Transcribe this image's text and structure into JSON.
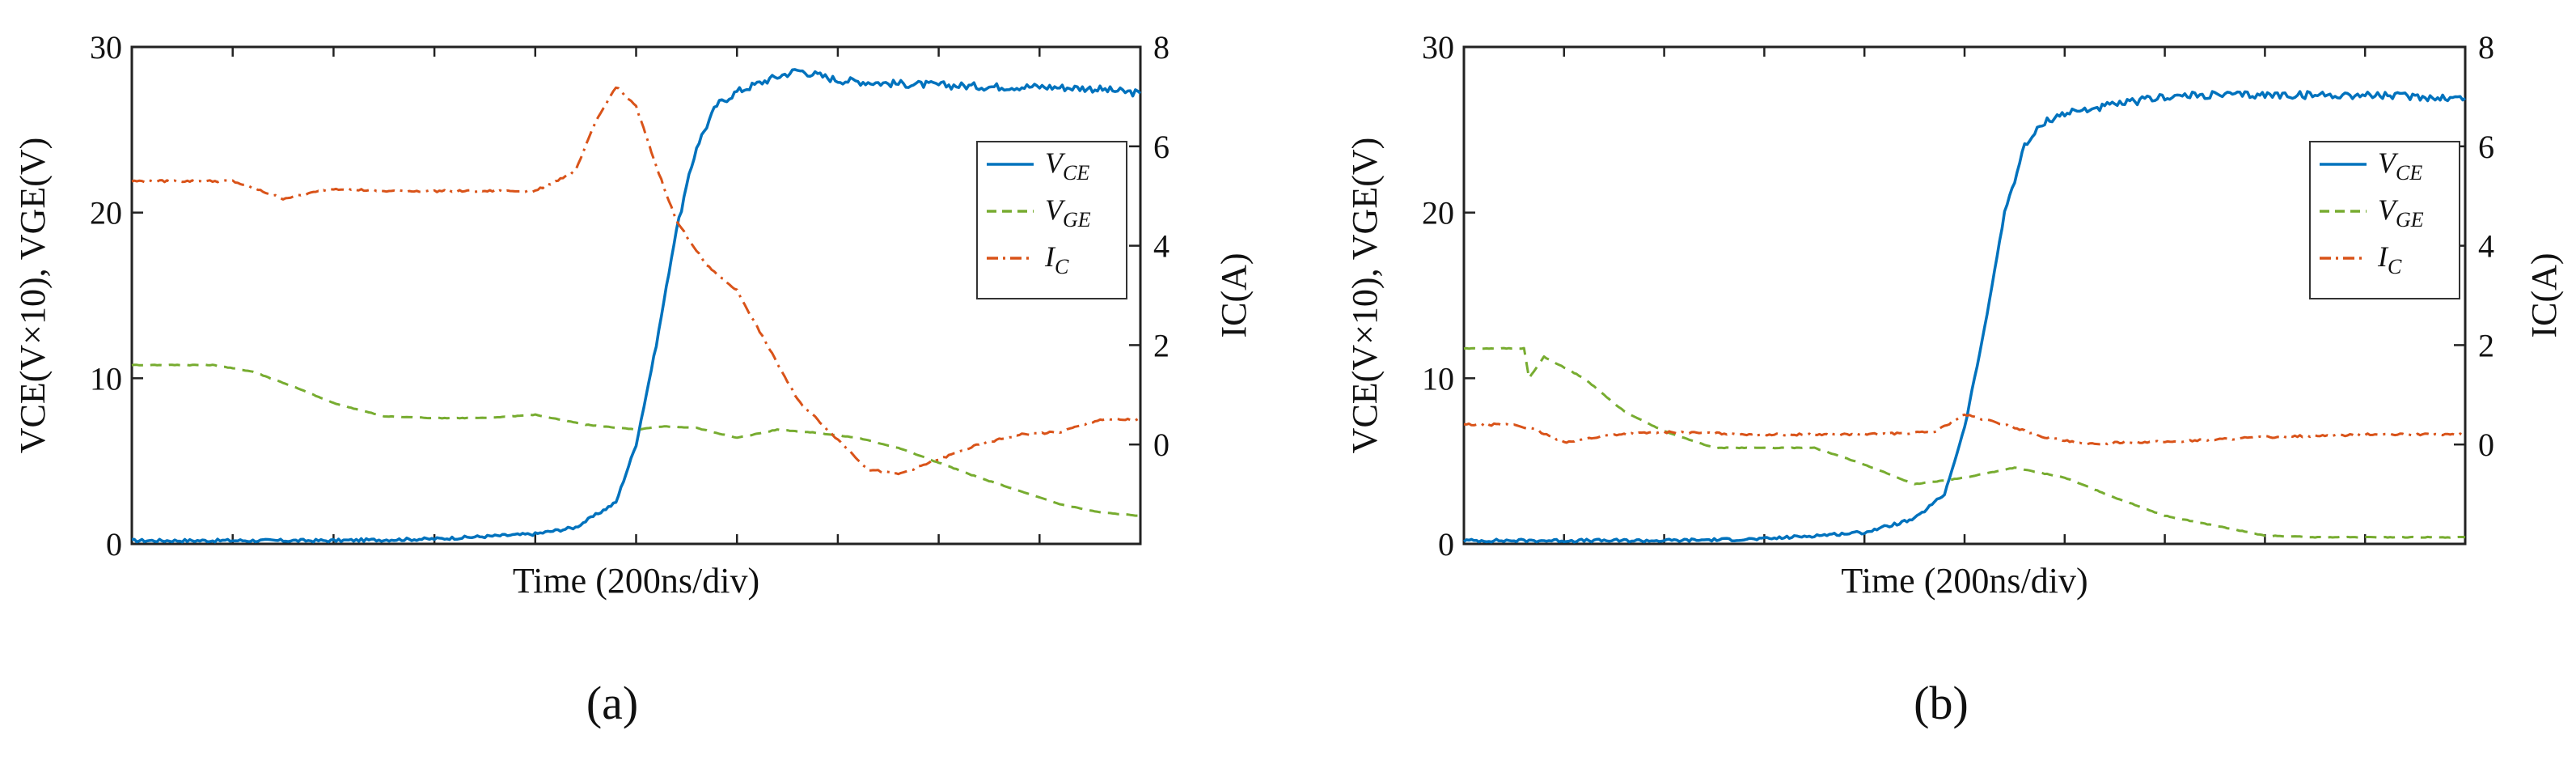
{
  "chart_data": [
    {
      "type": "line",
      "panel_label": "(a)",
      "xlabel": "Time (200ns/div)",
      "ylabel_left": "VCE(V×10), VGE(V)",
      "ylabel_right": "IC(A)",
      "x_divisions": 10,
      "ylim_left": [
        0,
        30
      ],
      "ylim_right": [
        -2,
        8
      ],
      "yticks_left": [
        "0",
        "10",
        "20",
        "30"
      ],
      "yticks_right": [
        "0",
        "2",
        "4",
        "6",
        "8"
      ],
      "legend": [
        {
          "series": "VCE",
          "main": "V",
          "sub": "CE",
          "color": "#0072BD",
          "dash": "solid"
        },
        {
          "series": "VGE",
          "main": "V",
          "sub": "GE",
          "color": "#77AC30",
          "dash": "dashed"
        },
        {
          "series": "IC",
          "main": "I",
          "sub": "C",
          "color": "#D95319",
          "dash": "dashdot"
        }
      ],
      "series": [
        {
          "name": "VCE",
          "axis": "left",
          "color": "#0072BD",
          "dash": "solid",
          "x": [
            0,
            1,
            2,
            3,
            4,
            4.4,
            4.8,
            5.0,
            5.2,
            5.4,
            5.6,
            5.8,
            6.0,
            6.3,
            6.6,
            7.0,
            7.5,
            8.0,
            8.5,
            9.0,
            9.5,
            10
          ],
          "y": [
            0.2,
            0.2,
            0.2,
            0.3,
            0.6,
            1.0,
            2.5,
            6.0,
            12.0,
            19.0,
            24.0,
            26.5,
            27.3,
            28.0,
            28.6,
            28.0,
            27.8,
            27.7,
            27.6,
            27.6,
            27.5,
            27.2
          ]
        },
        {
          "name": "VGE",
          "axis": "left",
          "color": "#77AC30",
          "dash": "dashed",
          "x": [
            0,
            0.8,
            1.2,
            1.6,
            2.0,
            2.5,
            3.0,
            3.5,
            4.0,
            4.5,
            5.0,
            5.3,
            5.6,
            6.0,
            6.4,
            6.8,
            7.2,
            7.6,
            8.0,
            8.4,
            8.8,
            9.2,
            9.6,
            10
          ],
          "y": [
            10.8,
            10.8,
            10.4,
            9.5,
            8.5,
            7.7,
            7.6,
            7.6,
            7.8,
            7.2,
            6.9,
            7.1,
            7.0,
            6.4,
            6.9,
            6.7,
            6.4,
            5.8,
            4.9,
            4.0,
            3.2,
            2.4,
            1.9,
            1.7
          ]
        },
        {
          "name": "IC",
          "axis": "right",
          "color": "#D95319",
          "dash": "dashdot",
          "x": [
            0,
            1.0,
            1.5,
            2.0,
            2.5,
            3.0,
            3.5,
            4.0,
            4.4,
            4.6,
            4.8,
            5.0,
            5.2,
            5.4,
            5.7,
            6.0,
            6.3,
            6.6,
            7.0,
            7.3,
            7.6,
            8.0,
            8.4,
            8.8,
            9.2,
            9.6,
            10
          ],
          "y": [
            5.3,
            5.3,
            4.95,
            5.15,
            5.1,
            5.1,
            5.1,
            5.1,
            5.5,
            6.5,
            7.2,
            6.8,
            5.6,
            4.5,
            3.6,
            3.1,
            2.0,
            0.9,
            0.1,
            -0.5,
            -0.6,
            -0.3,
            0.0,
            0.2,
            0.25,
            0.5,
            0.5
          ]
        }
      ]
    },
    {
      "type": "line",
      "panel_label": "(b)",
      "xlabel": "Time (200ns/div)",
      "ylabel_left": "VCE(V×10), VGE(V)",
      "ylabel_right": "IC(A)",
      "x_divisions": 10,
      "ylim_left": [
        0,
        30
      ],
      "ylim_right": [
        -2,
        8
      ],
      "yticks_left": [
        "0",
        "10",
        "20",
        "30"
      ],
      "yticks_right": [
        "0",
        "2",
        "4",
        "6",
        "8"
      ],
      "legend": [
        {
          "series": "VCE",
          "main": "V",
          "sub": "CE",
          "color": "#0072BD",
          "dash": "solid"
        },
        {
          "series": "VGE",
          "main": "V",
          "sub": "GE",
          "color": "#77AC30",
          "dash": "dashed"
        },
        {
          "series": "IC",
          "main": "I",
          "sub": "C",
          "color": "#D95319",
          "dash": "dashdot"
        }
      ],
      "series": [
        {
          "name": "VCE",
          "axis": "left",
          "color": "#0072BD",
          "dash": "solid",
          "x": [
            0,
            1,
            2,
            3,
            4,
            4.5,
            4.8,
            5.0,
            5.2,
            5.4,
            5.6,
            5.8,
            6.0,
            6.3,
            6.6,
            7.0,
            7.5,
            8.0,
            9.0,
            10
          ],
          "y": [
            0.2,
            0.2,
            0.2,
            0.3,
            0.7,
            1.5,
            3.0,
            7.0,
            13.0,
            20.0,
            24.0,
            25.5,
            26.0,
            26.3,
            26.6,
            27.0,
            27.1,
            27.1,
            27.1,
            26.9
          ]
        },
        {
          "name": "VGE",
          "axis": "left",
          "color": "#77AC30",
          "dash": "dashed",
          "x": [
            0,
            0.6,
            0.65,
            0.8,
            1.2,
            1.6,
            2.0,
            2.5,
            3.0,
            3.5,
            4.0,
            4.5,
            5.0,
            5.5,
            6.0,
            6.5,
            7.0,
            7.5,
            8.0,
            8.5,
            9.0,
            9.5,
            10
          ],
          "y": [
            11.8,
            11.8,
            10.0,
            11.3,
            10.0,
            8.0,
            6.8,
            5.8,
            5.8,
            5.8,
            4.8,
            3.6,
            4.0,
            4.6,
            4.0,
            2.8,
            1.7,
            1.1,
            0.5,
            0.4,
            0.4,
            0.4,
            0.4
          ]
        },
        {
          "name": "IC",
          "axis": "right",
          "color": "#D95319",
          "dash": "dashdot",
          "x": [
            0,
            0.5,
            0.7,
            1.0,
            1.5,
            2.0,
            3.0,
            4.0,
            4.7,
            5.0,
            5.4,
            5.8,
            6.2,
            6.6,
            7.0,
            7.5,
            8.0,
            9.0,
            10
          ],
          "y": [
            0.4,
            0.4,
            0.3,
            0.05,
            0.2,
            0.25,
            0.2,
            0.2,
            0.25,
            0.6,
            0.4,
            0.15,
            0.0,
            0.05,
            0.05,
            0.1,
            0.15,
            0.2,
            0.2
          ]
        }
      ]
    }
  ]
}
